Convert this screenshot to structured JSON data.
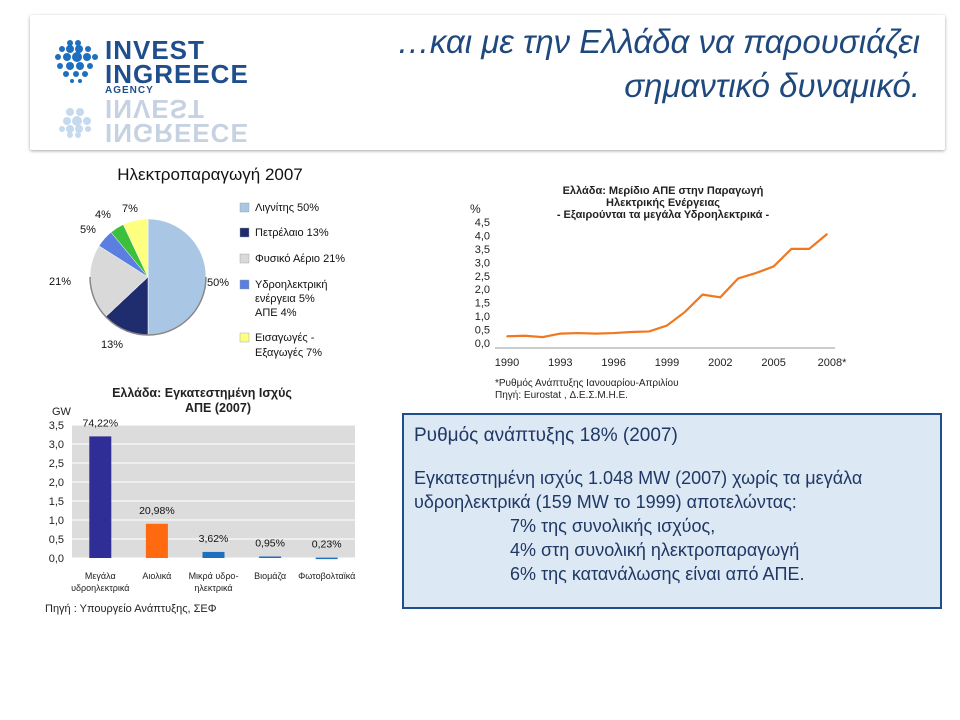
{
  "header": {
    "title_line1": "…και με την Ελλάδα να παρουσιάζει",
    "title_line2": "σημαντικό δυναμικό.",
    "logo_line1": "INVEST",
    "logo_line2": "INGREECE",
    "logo_line3": "AGENCY"
  },
  "colors": {
    "header_title": "#1f497d",
    "line_series": "#f07820",
    "box_fill": "#dde8f5",
    "box_border": "#1f4e8c"
  },
  "source_note": "Πηγή : Υπουργείο Ανάπτυξης, ΣΕΦ",
  "info_box": {
    "line1": "Ρυθμός ανάπτυξης 18% (2007)",
    "line2": "Εγκατεστημένη ισχύς 1.048 MW (2007) χωρίς τα μεγάλα",
    "line3": "υδροηλεκτρικά (159 MW το 1999) αποτελώντας:",
    "bullet1": "7% της συνολικής ισχύος,",
    "bullet2": "4% στη συνολική ηλεκτροπαραγωγή",
    "bullet3": "6% της κατανάλωσης είναι από ΑΠΕ."
  },
  "chart_data": [
    {
      "type": "pie",
      "title": "Ηλεκτροπαραγωγή 2007",
      "slices": [
        {
          "label": "Λιγνίτης",
          "value": 50,
          "color": "#a9c7e4",
          "pct_label": "50%"
        },
        {
          "label": "Πετρέλαιο",
          "value": 13,
          "color": "#1f2d6e",
          "pct_label": "13%"
        },
        {
          "label": "Φυσικό Αέριο",
          "value": 21,
          "color": "#d9d9d9",
          "pct_label": "21%"
        },
        {
          "label": "Υδροηλεκτρική ενέργεια",
          "value": 5,
          "color": "#5b7fe0",
          "pct_label": "5%"
        },
        {
          "label": "ΑΠΕ",
          "value": 4,
          "color": "#3cbf3c",
          "pct_label": "4%"
        },
        {
          "label": "Εισαγωγές - Εξαγωγές",
          "value": 7,
          "color": "#ffff80",
          "pct_label": "7%"
        }
      ],
      "legend": [
        {
          "text": "Λιγνίτης  50%",
          "color": "#a9c7e4"
        },
        {
          "text": "Πετρέλαιο  13%",
          "color": "#1f2d6e"
        },
        {
          "text": "Φυσικό Αέριο  21%",
          "color": "#d9d9d9"
        },
        {
          "text": "Υδροηλεκτρική",
          "color": "#5b7fe0"
        },
        {
          "text": "ενέργεια  5%",
          "color": ""
        },
        {
          "text": "ΑΠΕ  4%",
          "color": ""
        },
        {
          "text": "Εισαγωγές -",
          "color": "#ffff80"
        },
        {
          "text": "Εξαγωγές  7%",
          "color": ""
        }
      ]
    },
    {
      "type": "bar",
      "title_line1": "Ελλάδα: Εγκατεστημένη Ισχύς",
      "title_line2": "ΑΠΕ (2007)",
      "ylabel": "GW",
      "ylim": [
        0,
        3.5
      ],
      "yticks": [
        "0,0",
        "0,5",
        "1,0",
        "1,5",
        "2,0",
        "2,5",
        "3,0",
        "3,5"
      ],
      "categories": [
        "Μεγάλα υδροηλεκτρικά",
        "Αιολικά",
        "Μικρά υδροηλεκτρικά",
        "Βιομάζα",
        "Φωτοβολταϊκά"
      ],
      "category_lines": [
        [
          "Μεγάλα",
          "υδροηλεκτρικά"
        ],
        [
          "Αιολικά"
        ],
        [
          "Μικρά υδρο-",
          "ηλεκτρικά"
        ],
        [
          "Βιομάζα"
        ],
        [
          "Φωτοβολταϊκά"
        ]
      ],
      "values": [
        3.2,
        0.9,
        0.16,
        0.04,
        0.01
      ],
      "value_labels": [
        "74,22%",
        "20,98%",
        "3,62%",
        "0,95%",
        "0,23%"
      ],
      "colors": [
        "#2e2e96",
        "#ff6a10",
        "#1f6fc0",
        "#1f6fc0",
        "#1f6fc0"
      ]
    },
    {
      "type": "line",
      "title_line1": "Ελλάδα: Μερίδιο ΑΠΕ στην Παραγωγή",
      "title_line2": "Ηλεκτρικής Ενέργειας",
      "title_line3": "- Εξαιρούνται τα μεγάλα Υδροηλεκτρικά -",
      "ylabel": "%",
      "ylim": [
        0,
        4.5
      ],
      "yticks": [
        "0,0",
        "0,5",
        "1,0",
        "1,5",
        "2,0",
        "2,5",
        "3,0",
        "3,5",
        "4,0",
        "4,5"
      ],
      "xtick_labels": [
        "1990",
        "1993",
        "1996",
        "1999",
        "2002",
        "2005",
        "2008*"
      ],
      "x": [
        1990,
        1991,
        1992,
        1993,
        1994,
        1995,
        1996,
        1997,
        1998,
        1999,
        2000,
        2001,
        2002,
        2003,
        2004,
        2005,
        2006,
        2007,
        2008
      ],
      "values": [
        0.25,
        0.27,
        0.22,
        0.35,
        0.37,
        0.35,
        0.37,
        0.41,
        0.43,
        0.65,
        1.15,
        1.8,
        1.7,
        2.4,
        2.6,
        2.85,
        3.5,
        3.5,
        4.05
      ],
      "footnote1": "*Ρυθμός Ανάπτυξης Ιανουαρίου-Απριλίου",
      "footnote2": "Πηγή: Eurostat , Δ.Ε.Σ.Μ.Η.Ε."
    }
  ]
}
